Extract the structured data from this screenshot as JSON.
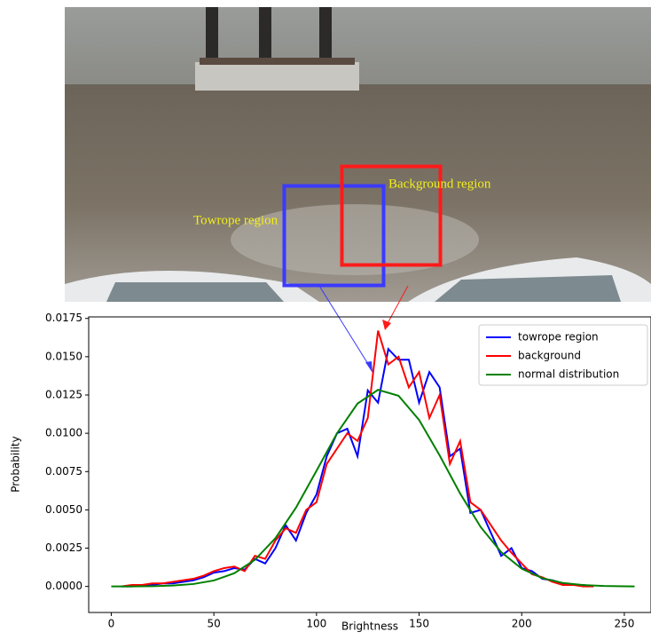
{
  "chart_data": {
    "type": "line",
    "annotations": [
      "Towrope region",
      "Background region"
    ],
    "xlabel": "Brightness",
    "ylabel": "Probability",
    "xlim": [
      -11,
      263
    ],
    "ylim": [
      -0.0017,
      0.0176
    ],
    "xticks": [
      0,
      50,
      100,
      150,
      200,
      250
    ],
    "yticks": [
      {
        "value": 0,
        "label": "0.0000"
      },
      {
        "value": 0.0025,
        "label": "0.0025"
      },
      {
        "value": 0.005,
        "label": "0.0050"
      },
      {
        "value": 0.0075,
        "label": "0.0075"
      },
      {
        "value": 0.01,
        "label": "0.0100"
      },
      {
        "value": 0.0125,
        "label": "0.0125"
      },
      {
        "value": 0.015,
        "label": "0.0150"
      },
      {
        "value": 0.0175,
        "label": "0.0175"
      }
    ],
    "legend": "upper right",
    "series": [
      {
        "name": "towrope region",
        "color": "#0000ff",
        "x": [
          5,
          10,
          15,
          20,
          25,
          30,
          35,
          40,
          45,
          50,
          55,
          60,
          65,
          70,
          75,
          80,
          85,
          90,
          95,
          100,
          105,
          110,
          115,
          120,
          125,
          130,
          135,
          140,
          145,
          150,
          155,
          160,
          165,
          170,
          175,
          180,
          185,
          190,
          195,
          200,
          205,
          210,
          215,
          220,
          225,
          230,
          235
        ],
        "values": [
          0,
          0,
          0.0001,
          0.0001,
          0.0002,
          0.0002,
          0.0003,
          0.0004,
          0.0006,
          0.0009,
          0.001,
          0.0012,
          0.0011,
          0.0018,
          0.0015,
          0.0025,
          0.004,
          0.003,
          0.0048,
          0.006,
          0.0085,
          0.01,
          0.0103,
          0.0085,
          0.0128,
          0.012,
          0.0155,
          0.0148,
          0.0148,
          0.012,
          0.014,
          0.013,
          0.0085,
          0.009,
          0.0048,
          0.005,
          0.0035,
          0.002,
          0.0025,
          0.0012,
          0.001,
          0.0005,
          0.0004,
          0.0002,
          0.0001,
          0.0001,
          0
        ]
      },
      {
        "name": "background",
        "color": "#ff0000",
        "x": [
          5,
          10,
          15,
          20,
          25,
          30,
          35,
          40,
          45,
          50,
          55,
          60,
          65,
          70,
          75,
          80,
          85,
          90,
          95,
          100,
          105,
          110,
          115,
          120,
          125,
          130,
          135,
          140,
          145,
          150,
          155,
          160,
          165,
          170,
          175,
          180,
          185,
          190,
          195,
          200,
          205,
          210,
          215,
          220,
          225,
          230,
          235
        ],
        "values": [
          0,
          0.0001,
          0.0001,
          0.0002,
          0.0002,
          0.0003,
          0.0004,
          0.0005,
          0.0007,
          0.001,
          0.0012,
          0.0013,
          0.001,
          0.002,
          0.0018,
          0.003,
          0.0038,
          0.0035,
          0.005,
          0.0055,
          0.008,
          0.009,
          0.01,
          0.0095,
          0.011,
          0.0167,
          0.0145,
          0.015,
          0.013,
          0.014,
          0.011,
          0.0125,
          0.008,
          0.0095,
          0.0055,
          0.005,
          0.004,
          0.003,
          0.0022,
          0.0015,
          0.0008,
          0.0006,
          0.0003,
          0.0001,
          0.0001,
          0,
          0
        ]
      },
      {
        "name": "normal distribution",
        "color": "#008000",
        "x": [
          0,
          10,
          20,
          30,
          40,
          50,
          60,
          70,
          80,
          90,
          100,
          110,
          120,
          130,
          140,
          150,
          160,
          170,
          180,
          190,
          200,
          210,
          220,
          230,
          240,
          250,
          255
        ],
        "values": [
          1.5e-06,
          5.6e-06,
          1.88e-05,
          5.74e-05,
          0.000158,
          0.000389,
          0.000865,
          0.00174,
          0.00315,
          0.00514,
          0.00755,
          0.01,
          0.01194,
          0.01284,
          0.01245,
          0.01087,
          0.00856,
          0.00607,
          0.00388,
          0.00224,
          0.00116,
          0.000543,
          0.000229,
          8.67e-05,
          2.98e-05,
          9.3e-06,
          5e-06
        ]
      }
    ]
  }
}
